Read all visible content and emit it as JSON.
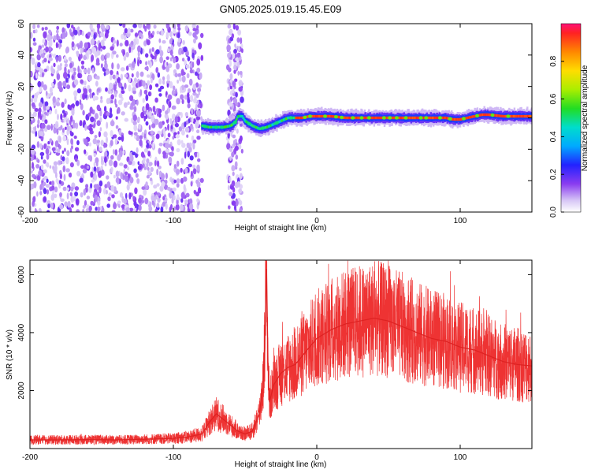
{
  "title": "GN05.2025.019.15.45.E09",
  "chart_data": [
    {
      "type": "heatmap",
      "xlabel": "Height of straight line (km)",
      "ylabel": "Frequency (Hz)",
      "xlim": [
        -200,
        150
      ],
      "ylim": [
        -60,
        60
      ],
      "xticks": [
        -200,
        -100,
        0,
        100
      ],
      "yticks": [
        -60,
        -40,
        -20,
        0,
        20,
        40,
        60
      ],
      "colorbar": {
        "label": "Normalized spectral amplitude",
        "range": [
          0.0,
          1.0
        ],
        "ticks": [
          "0.0",
          "0.2",
          "0.4",
          "0.6",
          "0.8"
        ],
        "tick_values": [
          0.0,
          0.2,
          0.4,
          0.6,
          0.8
        ]
      },
      "features": {
        "noise_region_x": [
          -200,
          -80
        ],
        "noise_band_x": [
          -62,
          -52
        ],
        "signal_trace": {
          "x": [
            -80,
            -75,
            -70,
            -65,
            -60,
            -57,
            -55,
            -52,
            -50,
            -45,
            -40,
            -35,
            -30,
            -25,
            -20,
            -15,
            -10,
            -5,
            0,
            10,
            20,
            40,
            60,
            80,
            90,
            95,
            100,
            105,
            110,
            115,
            120,
            130,
            140,
            150
          ],
          "y": [
            -5,
            -6,
            -6,
            -6,
            -5,
            -3,
            1,
            1,
            -2,
            -5,
            -7,
            -6,
            -4,
            -2,
            0,
            0,
            0,
            1,
            1,
            1,
            0,
            0,
            0,
            0,
            0,
            -1,
            -1,
            0,
            1,
            2,
            2,
            1,
            1,
            1
          ]
        }
      }
    },
    {
      "type": "line",
      "xlabel": "Height of straight line (km)",
      "ylabel": "SNR (10 * v/v)",
      "xlim": [
        -200,
        150
      ],
      "ylim": [
        0,
        6500
      ],
      "xticks": [
        -200,
        -100,
        0,
        100
      ],
      "yticks": [
        2000,
        4000,
        6000
      ],
      "color": "#ee3333",
      "series": [
        {
          "x": [
            -200,
            -180,
            -160,
            -140,
            -120,
            -100,
            -90,
            -80,
            -75,
            -70,
            -65,
            -60,
            -55,
            -50,
            -45,
            -40,
            -37,
            -35,
            -34,
            -33,
            -30,
            -25,
            -20,
            -15,
            -10,
            -5,
            0,
            10,
            20,
            30,
            40,
            50,
            60,
            70,
            80,
            90,
            100,
            110,
            120,
            130,
            140,
            150
          ],
          "values": [
            300,
            300,
            310,
            300,
            320,
            350,
            400,
            500,
            900,
            1200,
            1000,
            800,
            600,
            500,
            600,
            1200,
            2500,
            6200,
            3000,
            1600,
            2200,
            2600,
            2800,
            2900,
            3200,
            3500,
            3800,
            4100,
            4300,
            4400,
            4500,
            4400,
            4200,
            4000,
            3800,
            3700,
            3500,
            3400,
            3200,
            3000,
            2900,
            2850
          ]
        }
      ]
    }
  ]
}
